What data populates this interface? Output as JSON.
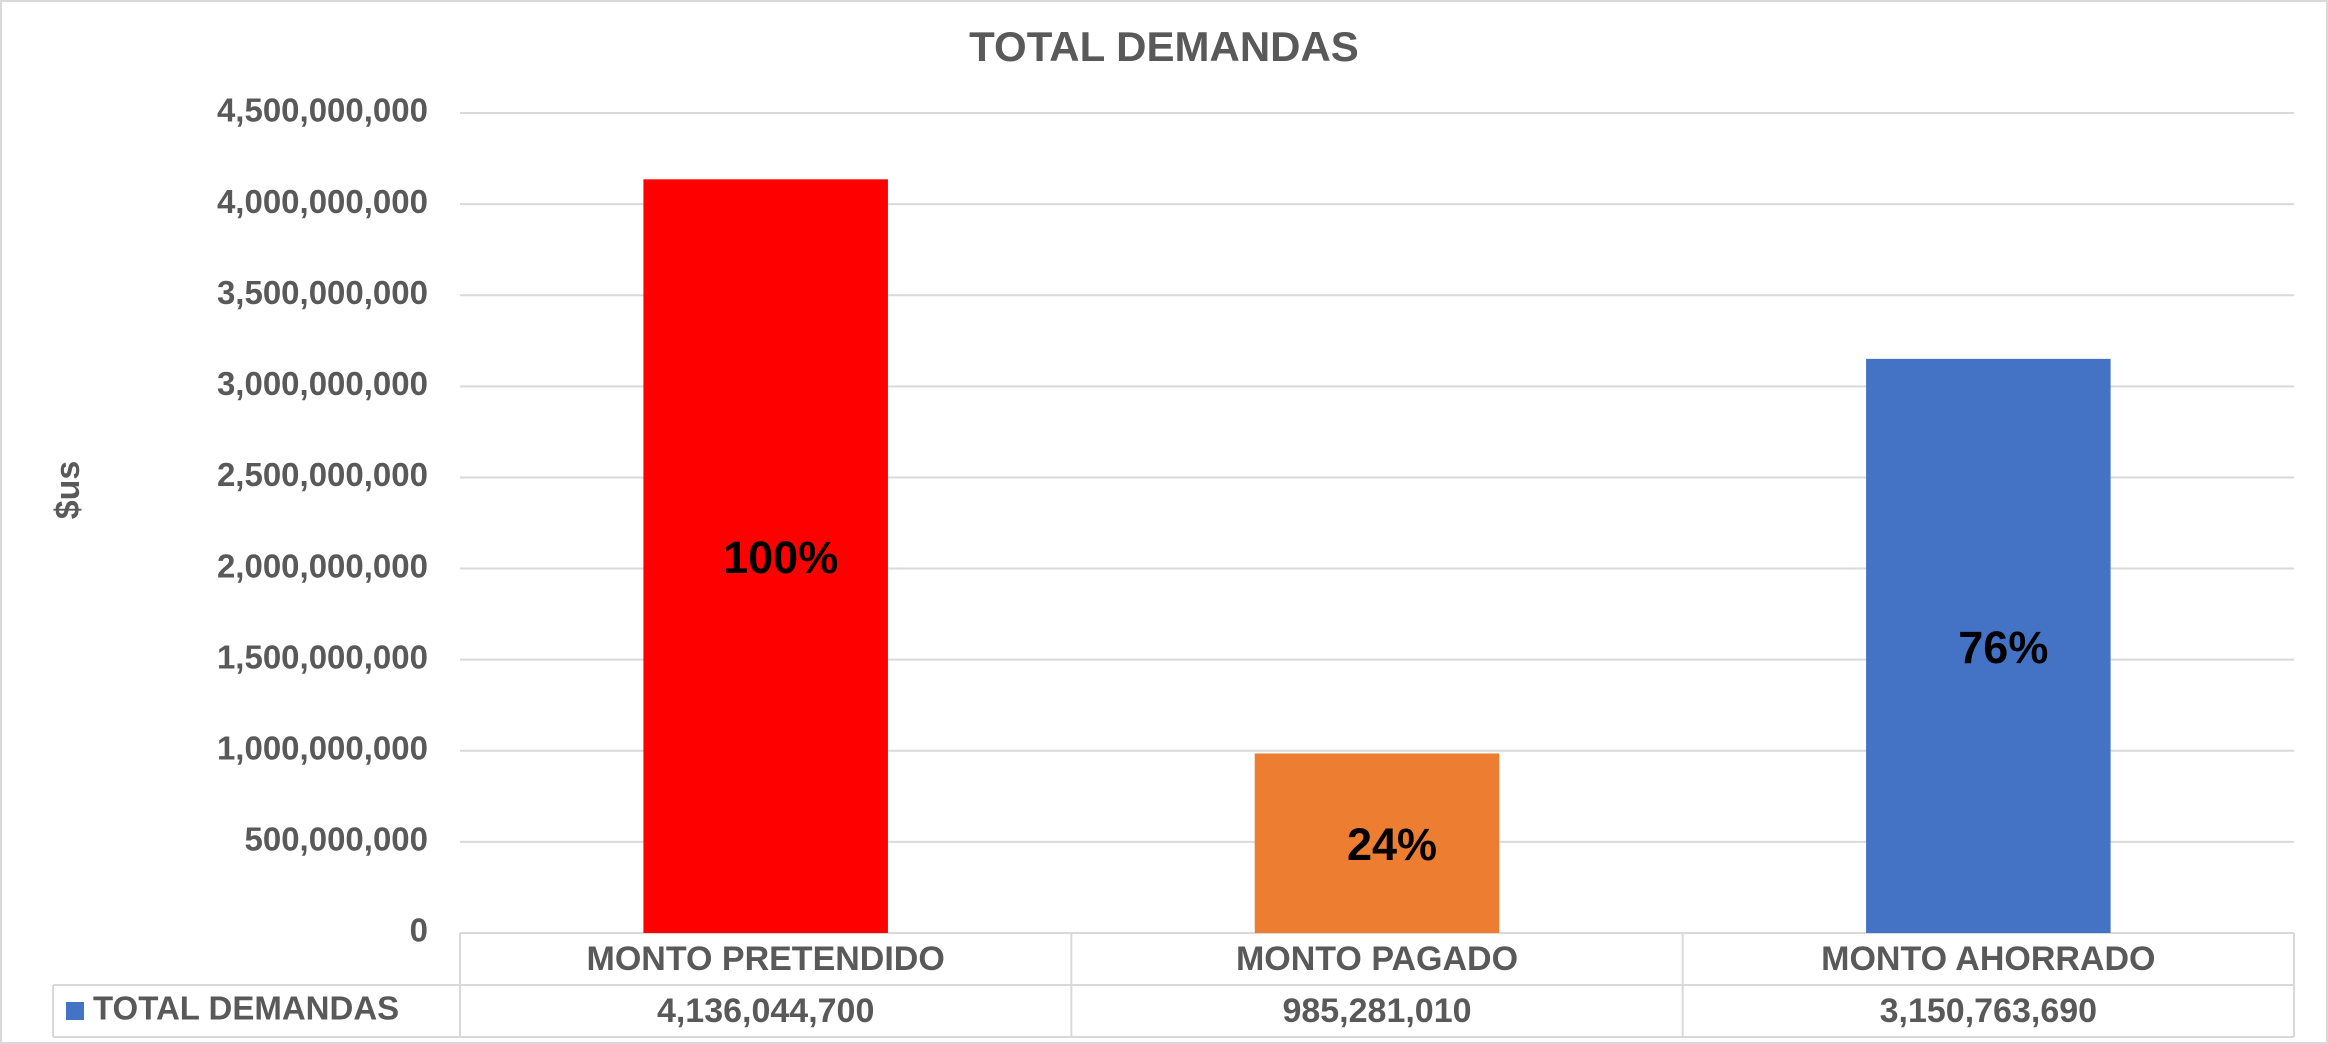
{
  "chart_data": {
    "type": "bar",
    "title": "TOTAL DEMANDAS",
    "y_label": "$us",
    "categories": [
      "MONTO PRETENDIDO",
      "MONTO PAGADO",
      "MONTO AHORRADO"
    ],
    "series": [
      {
        "name": "TOTAL DEMANDAS",
        "color": "#4472c4",
        "values": [
          4136044700,
          985281010,
          3150763690
        ],
        "value_labels": [
          "4,136,044,700",
          "985,281,010",
          "3,150,763,690"
        ]
      }
    ],
    "bar_colors": [
      "#ff0000",
      "#ed7d31",
      "#4472c4"
    ],
    "shares": {
      "values": [
        100,
        24,
        76
      ],
      "value_labels": [
        "100%",
        "24%",
        "76%"
      ]
    },
    "ylim": [
      0,
      4500000000
    ],
    "yticks": [
      0,
      {
        "value": 500000000,
        "label": "500,000,000"
      },
      {
        "value": 1000000000,
        "label": "1,000,000,000"
      },
      {
        "value": 1500000000,
        "label": "1,500,000,000"
      },
      {
        "value": 2000000000,
        "label": "2,000,000,000"
      },
      {
        "value": 2500000000,
        "label": "2,500,000,000"
      },
      {
        "value": 3000000000,
        "label": "3,000,000,000"
      },
      {
        "value": 3500000000,
        "label": "3,500,000,000"
      },
      {
        "value": 4000000000,
        "label": "4,000,000,000"
      },
      {
        "value": 4500000000,
        "label": "4,500,000,000"
      }
    ],
    "grid": true
  }
}
